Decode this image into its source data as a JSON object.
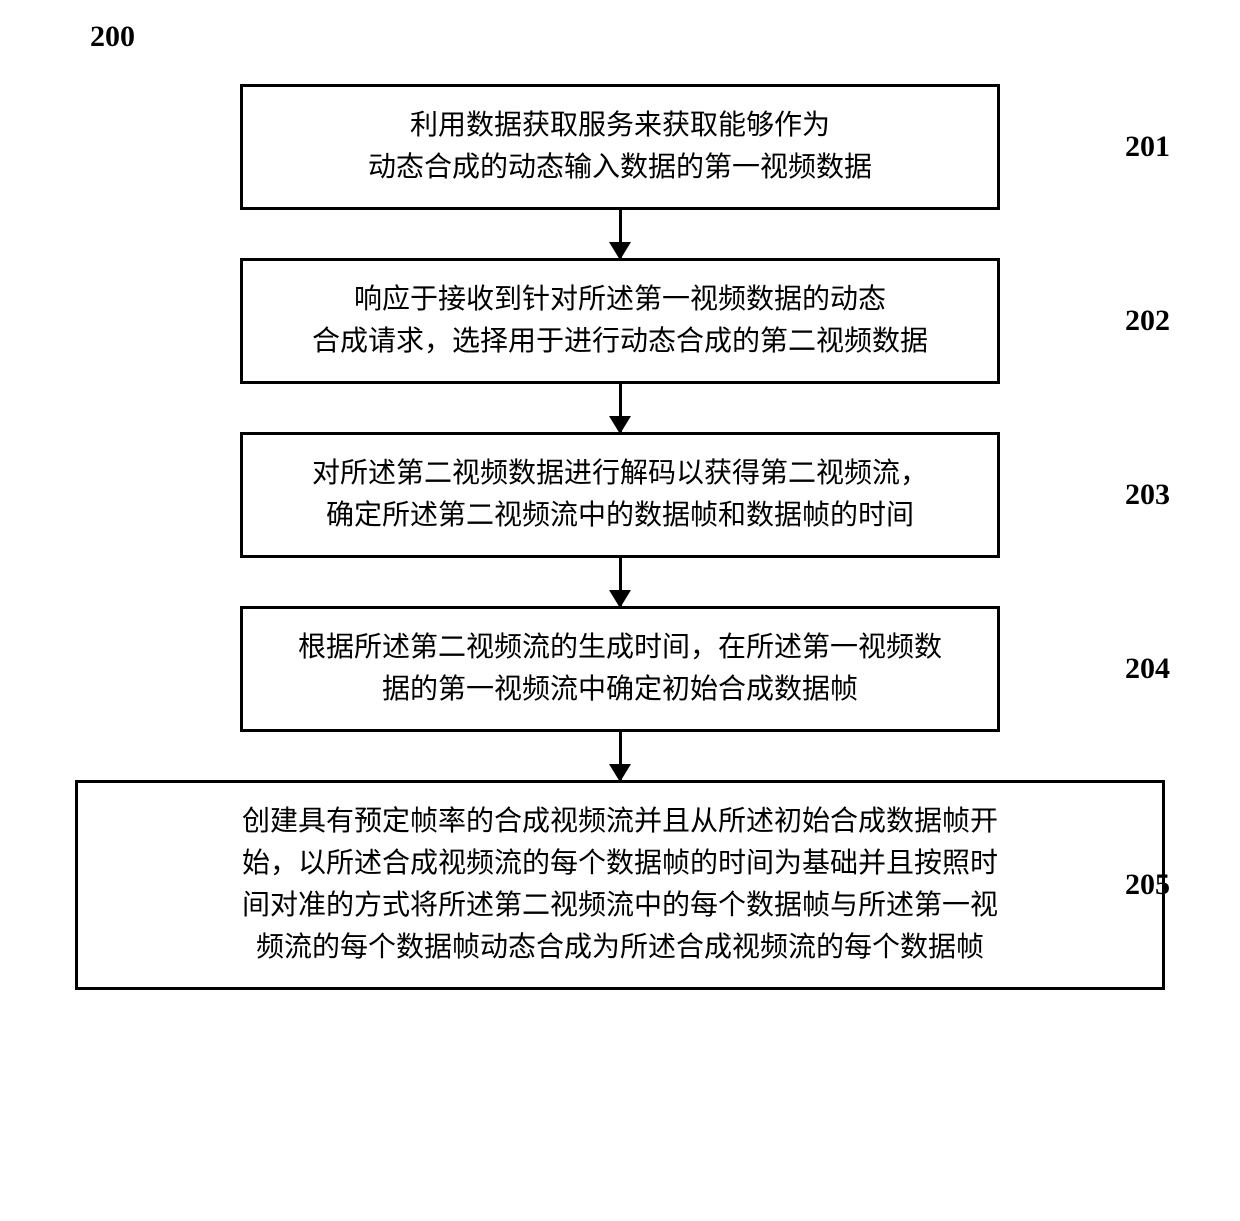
{
  "flowchart": {
    "type": "flowchart",
    "figure_number": "200",
    "background_color": "#ffffff",
    "box_border_color": "#000000",
    "box_border_width": 3,
    "arrow_color": "#000000",
    "text_color": "#000000",
    "font_family": "SimSun",
    "label_fontsize": 30,
    "box_fontsize": 28,
    "narrow_box_width": 760,
    "wide_box_width": 1090,
    "arrow_height": 48,
    "steps": [
      {
        "id": "201",
        "text": "利用数据获取服务来获取能够作为\n动态合成的动态输入数据的第一视频数据",
        "width": "narrow"
      },
      {
        "id": "202",
        "text": "响应于接收到针对所述第一视频数据的动态\n合成请求，选择用于进行动态合成的第二视频数据",
        "width": "narrow"
      },
      {
        "id": "203",
        "text": "对所述第二视频数据进行解码以获得第二视频流，\n确定所述第二视频流中的数据帧和数据帧的时间",
        "width": "narrow"
      },
      {
        "id": "204",
        "text": "根据所述第二视频流的生成时间，在所述第一视频数\n据的第一视频流中确定初始合成数据帧",
        "width": "narrow"
      },
      {
        "id": "205",
        "text": "创建具有预定帧率的合成视频流并且从所述初始合成数据帧开\n始，以所述合成视频流的每个数据帧的时间为基础并且按照时\n间对准的方式将所述第二视频流中的每个数据帧与所述第一视\n频流的每个数据帧动态合成为所述合成视频流的每个数据帧",
        "width": "wide"
      }
    ]
  }
}
